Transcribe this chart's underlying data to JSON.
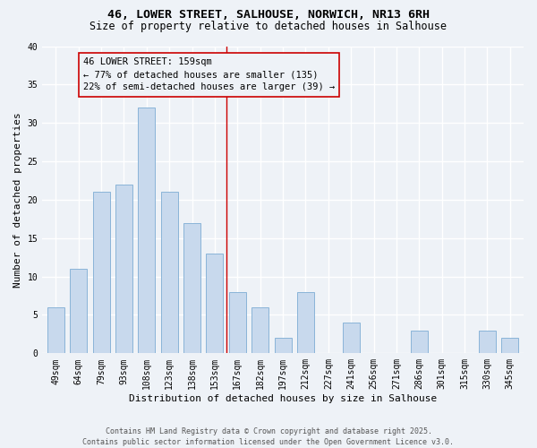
{
  "title_line1": "46, LOWER STREET, SALHOUSE, NORWICH, NR13 6RH",
  "title_line2": "Size of property relative to detached houses in Salhouse",
  "xlabel": "Distribution of detached houses by size in Salhouse",
  "ylabel": "Number of detached properties",
  "categories": [
    "49sqm",
    "64sqm",
    "79sqm",
    "93sqm",
    "108sqm",
    "123sqm",
    "138sqm",
    "153sqm",
    "167sqm",
    "182sqm",
    "197sqm",
    "212sqm",
    "227sqm",
    "241sqm",
    "256sqm",
    "271sqm",
    "286sqm",
    "301sqm",
    "315sqm",
    "330sqm",
    "345sqm"
  ],
  "values": [
    6,
    11,
    21,
    22,
    32,
    21,
    17,
    13,
    8,
    6,
    2,
    8,
    0,
    4,
    0,
    0,
    3,
    0,
    0,
    3,
    2
  ],
  "bar_color": "#c8d9ed",
  "bar_edge_color": "#8ab4d8",
  "subject_label": "46 LOWER STREET: 159sqm",
  "annotation_line1": "← 77% of detached houses are smaller (135)",
  "annotation_line2": "22% of semi-detached houses are larger (39) →",
  "vline_color": "#cc0000",
  "vline_x_index": 7.5,
  "ylim": [
    0,
    40
  ],
  "yticks": [
    0,
    5,
    10,
    15,
    20,
    25,
    30,
    35,
    40
  ],
  "bg_color": "#eef2f7",
  "grid_color": "#ffffff",
  "footer_line1": "Contains HM Land Registry data © Crown copyright and database right 2025.",
  "footer_line2": "Contains public sector information licensed under the Open Government Licence v3.0.",
  "annotation_box_color": "#cc0000",
  "annotation_fontsize": 7.5,
  "title_fontsize": 9.5,
  "subtitle_fontsize": 8.5,
  "xlabel_fontsize": 8,
  "ylabel_fontsize": 8,
  "tick_fontsize": 7,
  "footer_fontsize": 6
}
